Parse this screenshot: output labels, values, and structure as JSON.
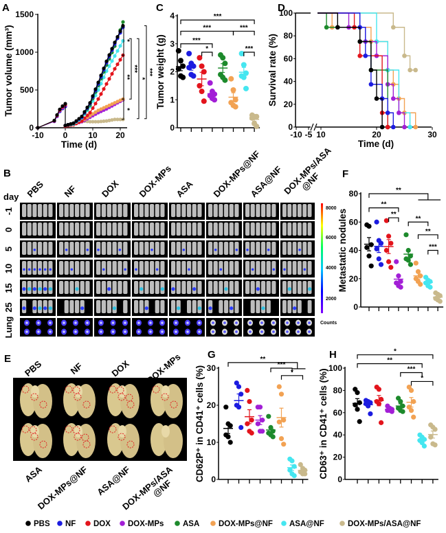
{
  "groups": [
    {
      "name": "PBS",
      "color": "#000000"
    },
    {
      "name": "NF",
      "color": "#1c1ce0"
    },
    {
      "name": "DOX",
      "color": "#e3141c"
    },
    {
      "name": "DOX-MPs",
      "color": "#a21fd6"
    },
    {
      "name": "ASA",
      "color": "#1d8a2c"
    },
    {
      "name": "DOX-MPs@NF",
      "color": "#f2a253"
    },
    {
      "name": "ASA@NF",
      "color": "#45e6f0"
    },
    {
      "name": "DOX-MPs/ASA@NF",
      "color": "#c9b98c"
    }
  ],
  "panel_b": {
    "label": "B",
    "day_label": "day",
    "columns": [
      "PBS",
      "NF",
      "DOX",
      "DOX-MPs",
      "ASA",
      "DOX-MPs@NF",
      "ASA@NF",
      "DOX-MPs/ASA@NF"
    ],
    "rows": [
      "-1",
      "0",
      "5",
      "10",
      "15",
      "25",
      "Lung"
    ],
    "colorbar": {
      "ticks": [
        "8000",
        "6000",
        "4000",
        "2000"
      ],
      "unit": "Counts",
      "colormap": [
        "#ff0000",
        "#ffff00",
        "#00ff60",
        "#00c8ff",
        "#0000ff",
        "#8000ff"
      ]
    }
  },
  "panel_e": {
    "label": "E",
    "top_labels": [
      "PBS",
      "NF",
      "DOX",
      "DOX-MPs"
    ],
    "bottom_labels": [
      "ASA",
      "DOX-MPs@NF",
      "ASA@NF",
      "DOX-MPs/ASA@NF"
    ]
  },
  "chart_data": [
    {
      "panel": "A",
      "type": "line",
      "xlabel": "Time (d)",
      "ylabel": "Tumor volume (mm³)",
      "xlim": [
        -10,
        24
      ],
      "ylim": [
        0,
        1500
      ],
      "xticks": [
        "-10",
        "0",
        "10",
        "20"
      ],
      "yticks": [
        "0",
        "500",
        "1000",
        "1500"
      ],
      "pretreatment": {
        "x": [
          -10,
          -4,
          -3,
          -2,
          -1,
          0
        ],
        "y": [
          0,
          90,
          160,
          230,
          270,
          300
        ]
      },
      "x": [
        0,
        3,
        6,
        9,
        12,
        15,
        18,
        21
      ],
      "series": [
        {
          "name": "PBS",
          "values": [
            30,
            60,
            150,
            330,
            600,
            880,
            1130,
            1350
          ]
        },
        {
          "name": "NF",
          "values": [
            30,
            60,
            140,
            320,
            580,
            860,
            1110,
            1330
          ]
        },
        {
          "name": "DOX",
          "values": [
            20,
            40,
            90,
            200,
            380,
            580,
            780,
            960
          ]
        },
        {
          "name": "DOX-MPs",
          "values": [
            30,
            50,
            80,
            140,
            200,
            250,
            310,
            370
          ]
        },
        {
          "name": "ASA",
          "values": [
            30,
            60,
            140,
            300,
            560,
            830,
            1080,
            1400
          ]
        },
        {
          "name": "DOX-MPs@NF",
          "values": [
            30,
            50,
            90,
            160,
            230,
            280,
            330,
            380
          ]
        },
        {
          "name": "ASA@NF",
          "values": [
            30,
            50,
            130,
            280,
            500,
            750,
            950,
            1150
          ]
        },
        {
          "name": "DOX-MPs/ASA@NF",
          "values": [
            30,
            60,
            90,
            80,
            80,
            90,
            110,
            110
          ]
        }
      ],
      "significance": [
        {
          "from": 1350,
          "to": 960,
          "label": "*"
        },
        {
          "from": 960,
          "to": 380,
          "label": "**"
        },
        {
          "from": 380,
          "to": 110,
          "label": "*"
        },
        {
          "from": 1180,
          "to": 380,
          "label": "***"
        },
        {
          "from": 1180,
          "to": 120,
          "label": "*"
        },
        {
          "from": 1350,
          "to": 120,
          "label": "***"
        }
      ]
    },
    {
      "panel": "C",
      "type": "scatter",
      "ylabel": "Tumor weight (g)",
      "ylim": [
        0,
        4
      ],
      "yticks": [
        "0",
        "1",
        "2",
        "3",
        "4"
      ],
      "series": [
        {
          "name": "PBS",
          "values": [
            2.75,
            2.4,
            2.2,
            2.1,
            1.85,
            1.8
          ]
        },
        {
          "name": "NF",
          "values": [
            2.65,
            2.3,
            2.2,
            2.15,
            1.9,
            1.85
          ]
        },
        {
          "name": "DOX",
          "values": [
            2.5,
            2.2,
            2.0,
            1.5,
            1.3,
            0.95
          ]
        },
        {
          "name": "DOX-MPs",
          "values": [
            1.6,
            1.3,
            1.2,
            1.15,
            1.05,
            1.0
          ]
        },
        {
          "name": "ASA",
          "values": [
            2.6,
            2.5,
            2.3,
            1.9,
            1.8,
            1.7
          ]
        },
        {
          "name": "DOX-MPs@NF",
          "values": [
            1.75,
            1.35,
            1.0,
            0.9,
            0.8,
            0.75
          ]
        },
        {
          "name": "ASA@NF",
          "values": [
            2.65,
            2.25,
            1.95,
            1.85,
            1.8,
            1.4
          ]
        },
        {
          "name": "DOX-MPs/ASA@NF",
          "values": [
            0.45,
            0.4,
            0.4,
            0.35,
            0.15,
            0.05
          ]
        }
      ],
      "significance": [
        {
          "groups": [
            0,
            7
          ],
          "label": "***"
        },
        {
          "groups": [
            0,
            5
          ],
          "label": "***"
        },
        {
          "groups": [
            5,
            7
          ],
          "label": "***"
        },
        {
          "groups": [
            0,
            3
          ],
          "label": "***"
        },
        {
          "groups": [
            2,
            3
          ],
          "label": "*"
        },
        {
          "groups": [
            6,
            7
          ],
          "label": "***"
        }
      ]
    },
    {
      "panel": "D",
      "type": "line",
      "xlabel": "Time (d)",
      "ylabel": "Survival rate (%)",
      "ylim": [
        0,
        100
      ],
      "xaxis_break": [
        -5,
        10
      ],
      "xticks": [
        "-10",
        "-5",
        "10",
        "20",
        "30"
      ],
      "yticks": [
        "0",
        "20",
        "40",
        "60",
        "80",
        "100"
      ],
      "series": [
        {
          "name": "PBS",
          "steps": [
            [
              13,
              87.5
            ],
            [
              17,
              75
            ],
            [
              19,
              50
            ],
            [
              20,
              25
            ],
            [
              21,
              0
            ]
          ]
        },
        {
          "name": "NF",
          "steps": [
            [
              17,
              87.5
            ],
            [
              18,
              62.5
            ],
            [
              19,
              37.5
            ],
            [
              21,
              25
            ],
            [
              22,
              12.5
            ],
            [
              23,
              0
            ]
          ]
        },
        {
          "name": "DOX",
          "steps": [
            [
              16,
              87.5
            ],
            [
              17,
              62.5
            ],
            [
              21,
              12.5
            ],
            [
              22,
              0
            ]
          ]
        },
        {
          "name": "DOX-MPs",
          "steps": [
            [
              15,
              87.5
            ],
            [
              18,
              75
            ],
            [
              20,
              62.5
            ],
            [
              22,
              37.5
            ],
            [
              23,
              25
            ],
            [
              24,
              12.5
            ],
            [
              25,
              0
            ]
          ]
        },
        {
          "name": "ASA",
          "steps": [
            [
              11,
              87.5
            ],
            [
              17,
              75
            ],
            [
              19,
              50
            ],
            [
              22,
              0
            ]
          ]
        },
        {
          "name": "DOX-MPs@NF",
          "steps": [
            [
              12,
              87.5
            ],
            [
              19,
              75
            ],
            [
              22,
              50
            ],
            [
              23,
              37.5
            ],
            [
              24,
              25
            ],
            [
              25,
              12.5
            ],
            [
              27,
              0
            ]
          ]
        },
        {
          "name": "ASA@NF",
          "steps": [
            [
              20,
              75
            ],
            [
              22,
              50
            ],
            [
              24,
              12.5
            ],
            [
              26,
              0
            ]
          ]
        },
        {
          "name": "DOX-MPs/ASA@NF",
          "steps": [
            [
              23,
              87.5
            ],
            [
              25,
              62.5
            ],
            [
              26,
              50
            ],
            [
              27,
              50
            ]
          ]
        }
      ]
    },
    {
      "panel": "F",
      "type": "scatter",
      "ylabel": "Metastatic nodules",
      "ylim": [
        0,
        80
      ],
      "yticks": [
        "0",
        "20",
        "40",
        "60",
        "80"
      ],
      "series": [
        {
          "name": "PBS",
          "values": [
            58,
            57,
            44,
            42,
            36,
            29
          ]
        },
        {
          "name": "NF",
          "values": [
            60,
            47,
            45,
            41,
            34,
            30
          ]
        },
        {
          "name": "DOX",
          "values": [
            61,
            50,
            45,
            40,
            32,
            28
          ]
        },
        {
          "name": "DOX-MPs",
          "values": [
            32,
            22,
            18,
            17,
            15,
            14
          ]
        },
        {
          "name": "ASA",
          "values": [
            51,
            40,
            36,
            34,
            33,
            30
          ]
        },
        {
          "name": "DOX-MPs@NF",
          "values": [
            31,
            25,
            22,
            20,
            18,
            16
          ]
        },
        {
          "name": "ASA@NF",
          "values": [
            21,
            19,
            18,
            17,
            15,
            14
          ]
        },
        {
          "name": "DOX-MPs/ASA@NF",
          "values": [
            10,
            9,
            8,
            6,
            5,
            4
          ]
        }
      ],
      "significance": [
        {
          "groups": [
            0,
            [
              5,
              7
            ]
          ],
          "label": "**"
        },
        {
          "groups": [
            0,
            3
          ],
          "label": "**"
        },
        {
          "groups": [
            2,
            3
          ],
          "label": "**"
        },
        {
          "groups": [
            4,
            6
          ],
          "label": "**"
        },
        {
          "groups": [
            5,
            7
          ],
          "label": "**"
        },
        {
          "groups": [
            6,
            7
          ],
          "label": "***"
        }
      ]
    },
    {
      "panel": "G",
      "type": "scatter",
      "ylabel": "CD62P⁺ in CD41⁺ cells (%)",
      "ylim": [
        0,
        30
      ],
      "yticks": [
        "0",
        "10",
        "20",
        "30"
      ],
      "series": [
        {
          "name": "PBS",
          "values": [
            19.5,
            15,
            14.5,
            12,
            11.5,
            10
          ]
        },
        {
          "name": "NF",
          "values": [
            26,
            25,
            23,
            20,
            19.5,
            14
          ]
        },
        {
          "name": "DOX",
          "values": [
            24,
            21,
            16,
            15,
            13,
            12.5
          ]
        },
        {
          "name": "DOX-MPs",
          "values": [
            19.5,
            19.5,
            16,
            15,
            13,
            13
          ]
        },
        {
          "name": "ASA",
          "values": [
            17,
            14,
            13,
            12.5,
            12,
            11.5
          ]
        },
        {
          "name": "DOX-MPs@NF",
          "values": [
            25,
            23,
            16,
            15.5,
            11,
            9.5
          ]
        },
        {
          "name": "ASA@NF",
          "values": [
            5.5,
            5,
            3.5,
            2.5,
            1.5,
            1
          ]
        },
        {
          "name": "DOX-MPs/ASA@NF",
          "values": [
            4,
            3,
            2.5,
            2,
            1.5,
            1.5
          ]
        }
      ],
      "significance": [
        {
          "groups": [
            0,
            [
              6,
              7
            ]
          ],
          "label": "**"
        },
        {
          "groups": [
            4,
            6
          ],
          "label": "***"
        },
        {
          "groups": [
            5,
            7
          ],
          "label": "*"
        }
      ]
    },
    {
      "panel": "H",
      "type": "scatter",
      "ylabel": "CD63⁺ in CD41⁺ cells (%)",
      "ylim": [
        0,
        100
      ],
      "yticks": [
        "0",
        "20",
        "40",
        "60",
        "80",
        "100"
      ],
      "series": [
        {
          "name": "PBS",
          "values": [
            81,
            78,
            69,
            67,
            63,
            52
          ]
        },
        {
          "name": "NF",
          "values": [
            71,
            70,
            69,
            68,
            66,
            59
          ]
        },
        {
          "name": "DOX",
          "values": [
            83,
            81,
            72,
            70,
            68,
            51
          ]
        },
        {
          "name": "DOX-MPs",
          "values": [
            66,
            64,
            63,
            62,
            62,
            61
          ]
        },
        {
          "name": "ASA",
          "values": [
            73,
            70,
            66,
            64,
            62,
            61
          ]
        },
        {
          "name": "DOX-MPs@NF",
          "values": [
            83,
            80,
            70,
            65,
            62,
            56
          ]
        },
        {
          "name": "ASA@NF",
          "values": [
            40,
            38,
            36,
            35,
            33,
            30
          ]
        },
        {
          "name": "DOX-MPs/ASA@NF",
          "values": [
            49,
            47,
            45,
            38,
            32,
            31
          ]
        }
      ],
      "significance": [
        {
          "groups": [
            0,
            7
          ],
          "label": "*"
        },
        {
          "groups": [
            0,
            6
          ],
          "label": "**"
        },
        {
          "groups": [
            4,
            6
          ],
          "label": "***"
        },
        {
          "groups": [
            5,
            7
          ],
          "label": "*"
        }
      ]
    }
  ]
}
